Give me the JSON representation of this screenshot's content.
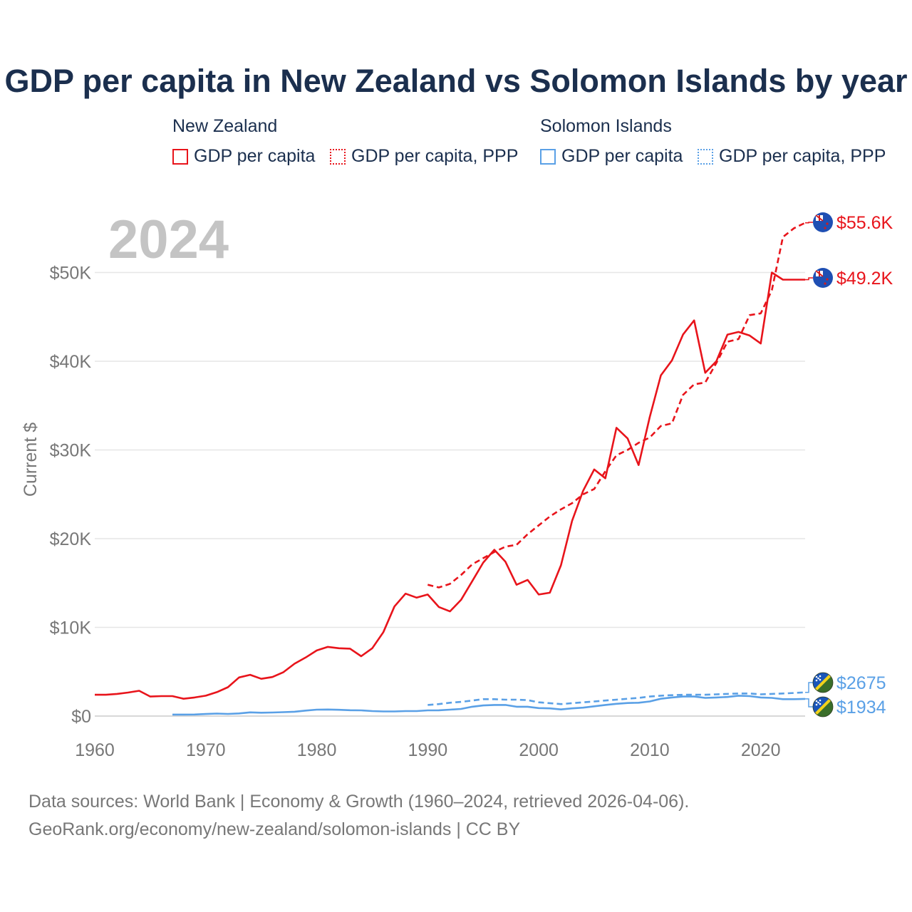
{
  "title": "GDP per capita in New Zealand vs Solomon Islands by year",
  "legend": {
    "groups": [
      {
        "country": "New Zealand",
        "color": "#e8141b",
        "items": [
          {
            "label": "GDP per capita",
            "style": "solid"
          },
          {
            "label": "GDP per capita, PPP",
            "style": "dotted"
          }
        ]
      },
      {
        "country": "Solomon Islands",
        "color": "#5aa0e6",
        "items": [
          {
            "label": "GDP per capita",
            "style": "solid"
          },
          {
            "label": "GDP per capita, PPP",
            "style": "dotted"
          }
        ]
      }
    ]
  },
  "year_label": "2024",
  "footer": {
    "line1": "Data sources: World Bank | Economy & Growth (1960–2024, retrieved 2026-04-06).",
    "line2": "GeoRank.org/economy/new-zealand/solomon-islands | CC BY"
  },
  "chart_data": {
    "type": "line",
    "title": "GDP per capita in New Zealand vs Solomon Islands by year",
    "ylabel": "Current $",
    "xlabel": "",
    "xlim": [
      1960,
      2024
    ],
    "ylim": [
      0,
      55600
    ],
    "x_ticks": [
      1960,
      1970,
      1980,
      1990,
      2000,
      2010,
      2020
    ],
    "y_ticks": [
      {
        "value": 0,
        "label": "$0"
      },
      {
        "value": 10000,
        "label": "$10K"
      },
      {
        "value": 20000,
        "label": "$20K"
      },
      {
        "value": 30000,
        "label": "$30K"
      },
      {
        "value": 40000,
        "label": "$40K"
      },
      {
        "value": 50000,
        "label": "$50K"
      }
    ],
    "series": [
      {
        "name": "New Zealand GDP per capita",
        "color": "#e8141b",
        "dash": "solid",
        "end_label": "$49.2K",
        "x": [
          1960,
          1961,
          1962,
          1963,
          1964,
          1965,
          1966,
          1967,
          1968,
          1969,
          1970,
          1971,
          1972,
          1973,
          1974,
          1975,
          1976,
          1977,
          1978,
          1979,
          1980,
          1981,
          1982,
          1983,
          1984,
          1985,
          1986,
          1987,
          1988,
          1989,
          1990,
          1991,
          1992,
          1993,
          1994,
          1995,
          1996,
          1997,
          1998,
          1999,
          2000,
          2001,
          2002,
          2003,
          2004,
          2005,
          2006,
          2007,
          2008,
          2009,
          2010,
          2011,
          2012,
          2013,
          2014,
          2015,
          2016,
          2017,
          2018,
          2019,
          2020,
          2021,
          2022,
          2023,
          2024
        ],
        "values": [
          2400,
          2400,
          2500,
          2650,
          2850,
          2200,
          2250,
          2250,
          1950,
          2100,
          2300,
          2700,
          3250,
          4350,
          4650,
          4200,
          4400,
          4950,
          5900,
          6600,
          7400,
          7800,
          7650,
          7600,
          6750,
          7650,
          9450,
          12350,
          13800,
          13350,
          13700,
          12300,
          11800,
          13100,
          15200,
          17300,
          18750,
          17400,
          14800,
          15350,
          13700,
          13900,
          17000,
          22000,
          25400,
          27800,
          26800,
          32500,
          31300,
          28300,
          33700,
          38400,
          40100,
          43000,
          44600,
          38700,
          40000,
          43000,
          43300,
          42900,
          42000,
          50000,
          49200,
          49200,
          49200
        ]
      },
      {
        "name": "New Zealand GDP per capita, PPP",
        "color": "#e8141b",
        "dash": "dashed",
        "end_label": "$55.6K",
        "x": [
          1990,
          1991,
          1992,
          1993,
          1994,
          1995,
          1996,
          1997,
          1998,
          1999,
          2000,
          2001,
          2002,
          2003,
          2004,
          2005,
          2006,
          2007,
          2008,
          2009,
          2010,
          2011,
          2012,
          2013,
          2014,
          2015,
          2016,
          2017,
          2018,
          2019,
          2020,
          2021,
          2022,
          2023,
          2024
        ],
        "values": [
          14800,
          14500,
          14900,
          15900,
          17100,
          17800,
          18500,
          19100,
          19300,
          20500,
          21500,
          22500,
          23300,
          24000,
          25000,
          25600,
          27600,
          29400,
          30000,
          30800,
          31400,
          32700,
          33000,
          36200,
          37400,
          37600,
          39800,
          42200,
          42500,
          45200,
          45400,
          48000,
          54000,
          55000,
          55600
        ]
      },
      {
        "name": "Solomon Islands GDP per capita",
        "color": "#5aa0e6",
        "dash": "solid",
        "end_label": "$1934",
        "x": [
          1967,
          1968,
          1969,
          1970,
          1971,
          1972,
          1973,
          1974,
          1975,
          1976,
          1977,
          1978,
          1979,
          1980,
          1981,
          1982,
          1983,
          1984,
          1985,
          1986,
          1987,
          1988,
          1989,
          1990,
          1991,
          1992,
          1993,
          1994,
          1995,
          1996,
          1997,
          1998,
          1999,
          2000,
          2001,
          2002,
          2003,
          2004,
          2005,
          2006,
          2007,
          2008,
          2009,
          2010,
          2011,
          2012,
          2013,
          2014,
          2015,
          2016,
          2017,
          2018,
          2019,
          2020,
          2021,
          2022,
          2023,
          2024
        ],
        "values": [
          170,
          170,
          180,
          230,
          280,
          240,
          300,
          420,
          380,
          400,
          440,
          490,
          620,
          720,
          740,
          710,
          660,
          640,
          560,
          520,
          520,
          560,
          560,
          640,
          650,
          720,
          800,
          1050,
          1200,
          1250,
          1250,
          1050,
          1050,
          900,
          870,
          750,
          870,
          950,
          1100,
          1250,
          1380,
          1470,
          1500,
          1650,
          1950,
          2100,
          2200,
          2200,
          2050,
          2100,
          2150,
          2300,
          2250,
          2100,
          2050,
          1900,
          1900,
          1934
        ]
      },
      {
        "name": "Solomon Islands GDP per capita, PPP",
        "color": "#5aa0e6",
        "dash": "dashed",
        "end_label": "$2675",
        "x": [
          1990,
          1991,
          1992,
          1993,
          1994,
          1995,
          1996,
          1997,
          1998,
          1999,
          2000,
          2001,
          2002,
          2003,
          2004,
          2005,
          2006,
          2007,
          2008,
          2009,
          2010,
          2011,
          2012,
          2013,
          2014,
          2015,
          2016,
          2017,
          2018,
          2019,
          2020,
          2021,
          2022,
          2023,
          2024
        ],
        "values": [
          1250,
          1350,
          1500,
          1600,
          1750,
          1900,
          1900,
          1850,
          1850,
          1800,
          1550,
          1450,
          1350,
          1450,
          1550,
          1650,
          1750,
          1850,
          1950,
          2050,
          2200,
          2300,
          2350,
          2400,
          2400,
          2400,
          2450,
          2500,
          2550,
          2550,
          2450,
          2500,
          2550,
          2600,
          2675
        ]
      }
    ]
  }
}
